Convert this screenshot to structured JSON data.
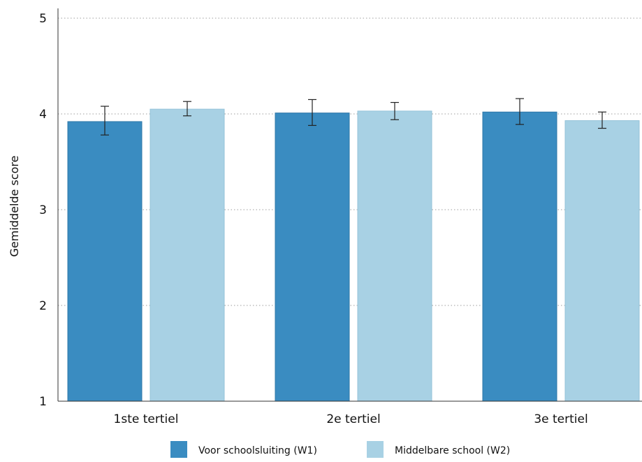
{
  "chart_data": {
    "type": "bar",
    "categories": [
      "1ste tertiel",
      "2e tertiel",
      "3e tertiel"
    ],
    "series": [
      {
        "name": "Voor schoolsluiting (W1)",
        "values": [
          3.92,
          4.01,
          4.02
        ],
        "error_low": [
          3.78,
          3.88,
          3.89
        ],
        "error_high": [
          4.08,
          4.15,
          4.16
        ]
      },
      {
        "name": "Middelbare school (W2)",
        "values": [
          4.05,
          4.03,
          3.93
        ],
        "error_low": [
          3.98,
          3.94,
          3.85
        ],
        "error_high": [
          4.13,
          4.12,
          4.02
        ]
      }
    ],
    "title": "",
    "xlabel": "",
    "ylabel": "Gemiddelde score",
    "ylim": [
      1,
      5
    ],
    "yticks": [
      "1",
      "2",
      "3",
      "4",
      "5"
    ],
    "grid": "horizontal dotted",
    "legend_position": "bottom"
  },
  "colors": {
    "series": [
      "#3a8cc1",
      "#a8d1e4"
    ],
    "grid": "#9e9e9e",
    "axis": "#333333",
    "error_bar": "#222222"
  }
}
